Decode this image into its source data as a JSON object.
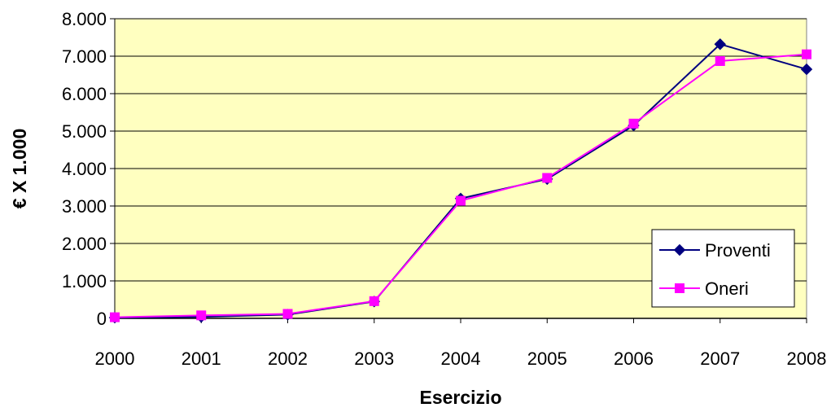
{
  "chart_data": {
    "type": "line",
    "x": [
      "2000",
      "2001",
      "2002",
      "2003",
      "2004",
      "2005",
      "2006",
      "2007",
      "2008"
    ],
    "series": [
      {
        "name": "Proventi",
        "values": [
          20,
          40,
          100,
          450,
          3200,
          3720,
          5150,
          7320,
          6650
        ],
        "color": "#000080",
        "marker": "diamond"
      },
      {
        "name": "Oneri",
        "values": [
          30,
          80,
          120,
          460,
          3140,
          3750,
          5200,
          6870,
          7050
        ],
        "color": "#ff00ff",
        "marker": "square"
      }
    ],
    "xlabel": "Esercizio",
    "ylabel": "€ X 1.000",
    "ylim": [
      0,
      8000
    ],
    "yticks": [
      0,
      1000,
      2000,
      3000,
      4000,
      5000,
      6000,
      7000,
      8000
    ],
    "ytick_labels": [
      "0",
      "1.000",
      "2.000",
      "3.000",
      "4.000",
      "5.000",
      "6.000",
      "7.000",
      "8.000"
    ],
    "plot_background": "#ffffc0",
    "grid": true,
    "legend_position": "bottom-right"
  }
}
